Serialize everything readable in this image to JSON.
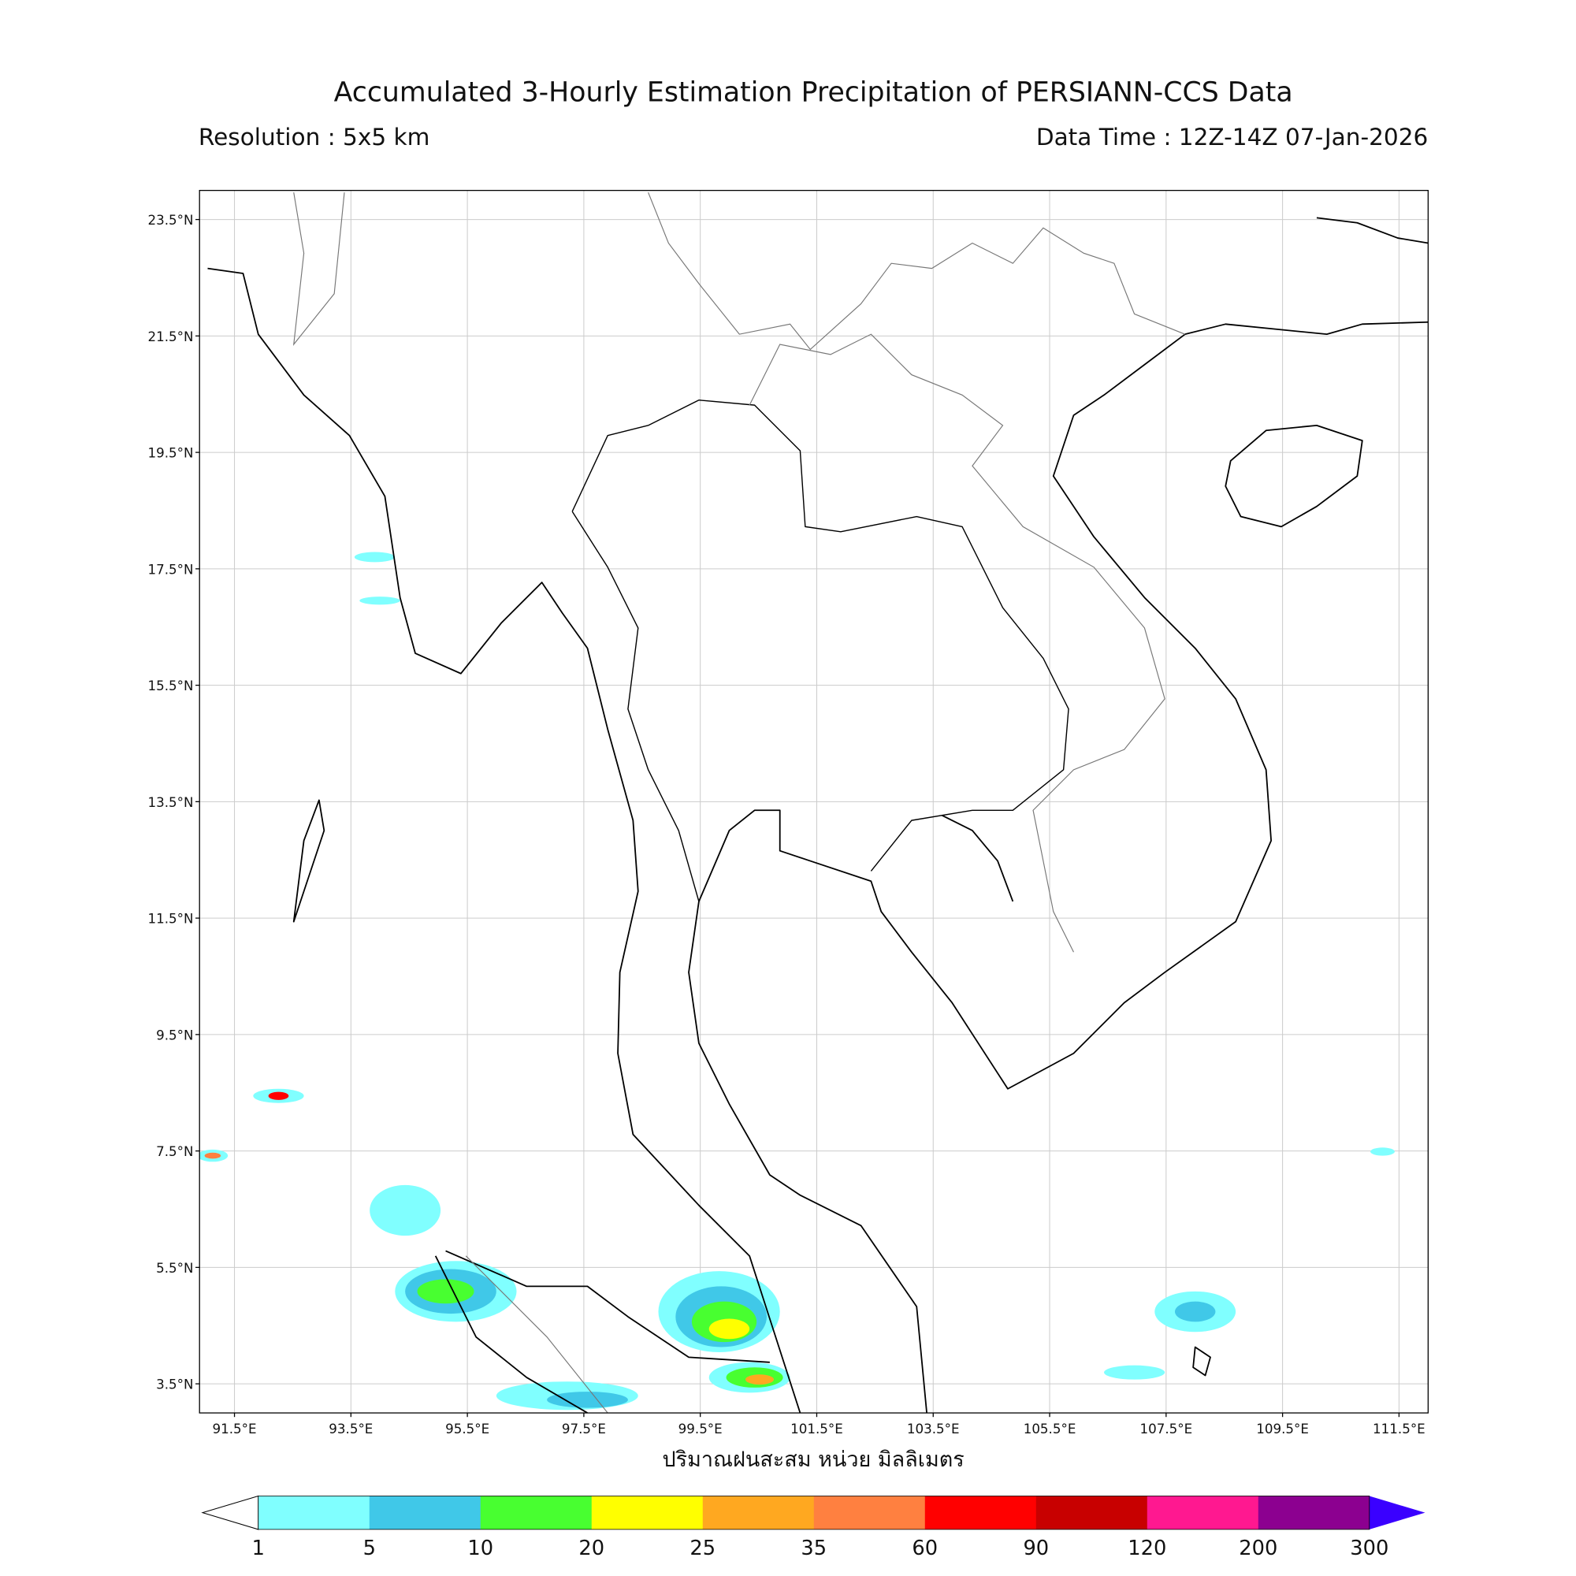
{
  "header": {
    "title": "Accumulated 3-Hourly Estimation Precipitation of PERSIANN-CCS Data",
    "resolution": "Resolution : 5x5 km",
    "data_time": "Data Time : 12Z-14Z 07-Jan-2026"
  },
  "map": {
    "lon_range": [
      90.9,
      112.0
    ],
    "lat_range": [
      3.0,
      24.0
    ],
    "grid": true,
    "lat_ticks": [
      {
        "value": 23.5,
        "label": "23.5°N"
      },
      {
        "value": 21.5,
        "label": "21.5°N"
      },
      {
        "value": 19.5,
        "label": "19.5°N"
      },
      {
        "value": 17.5,
        "label": "17.5°N"
      },
      {
        "value": 15.5,
        "label": "15.5°N"
      },
      {
        "value": 13.5,
        "label": "13.5°N"
      },
      {
        "value": 11.5,
        "label": "11.5°N"
      },
      {
        "value": 9.5,
        "label": "9.5°N"
      },
      {
        "value": 7.5,
        "label": "7.5°N"
      },
      {
        "value": 5.5,
        "label": "5.5°N"
      },
      {
        "value": 3.5,
        "label": "3.5°N"
      }
    ],
    "lon_ticks": [
      {
        "value": 91.5,
        "label": "91.5°E"
      },
      {
        "value": 93.5,
        "label": "93.5°E"
      },
      {
        "value": 95.5,
        "label": "95.5°E"
      },
      {
        "value": 97.5,
        "label": "97.5°E"
      },
      {
        "value": 99.5,
        "label": "99.5°E"
      },
      {
        "value": 101.5,
        "label": "101.5°E"
      },
      {
        "value": 103.5,
        "label": "103.5°E"
      },
      {
        "value": 105.5,
        "label": "105.5°E"
      },
      {
        "value": 107.5,
        "label": "107.5°E"
      },
      {
        "value": 109.5,
        "label": "109.5°E"
      },
      {
        "value": 111.5,
        "label": "111.5°E"
      }
    ]
  },
  "colorbar": {
    "label": "ปริมาณฝนสะสม หน่วย มิลลิเมตร",
    "bounds": [
      1,
      5,
      10,
      20,
      25,
      35,
      60,
      90,
      120,
      200,
      300
    ],
    "colors": [
      "#80ffff",
      "#40c8e8",
      "#48ff30",
      "#ffff00",
      "#ffa820",
      "#ff8040",
      "#ff0000",
      "#c80000",
      "#ff1890",
      "#8c0090"
    ],
    "under_color": "#ffffff",
    "over_color": "#3a00ff"
  }
}
